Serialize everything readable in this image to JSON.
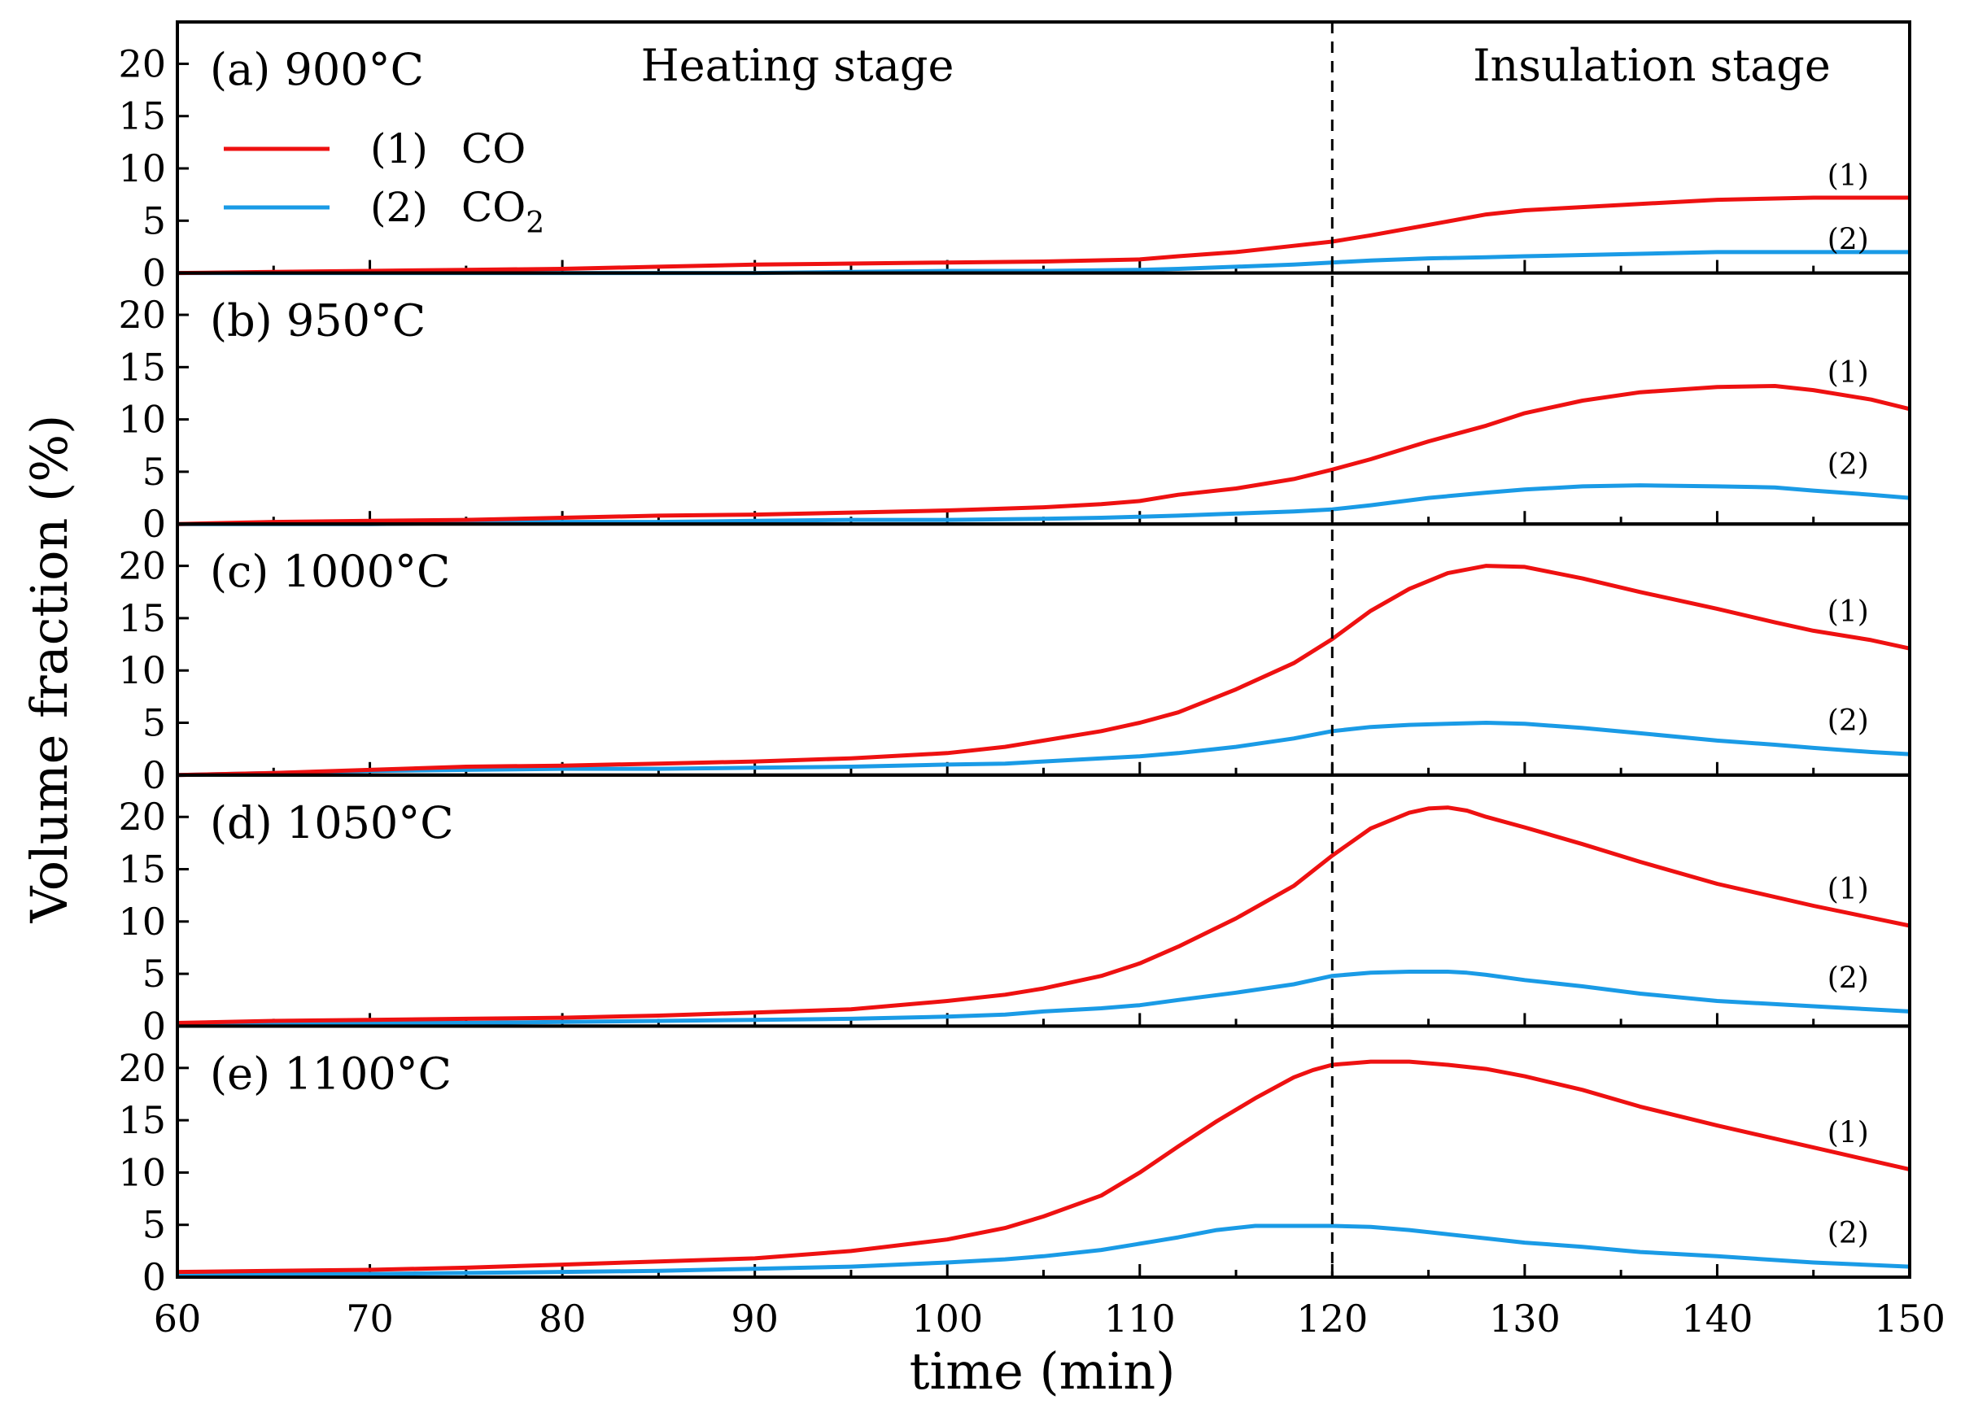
{
  "chart_data": {
    "type": "line",
    "layout": "stacked-panels",
    "xlabel": "time (min)",
    "ylabel": "Volume fraction (%)",
    "xlim": [
      60,
      150
    ],
    "xticks": [
      60,
      70,
      80,
      90,
      100,
      110,
      120,
      130,
      140,
      150
    ],
    "ylim": [
      0,
      24
    ],
    "yticks": [
      0,
      5,
      10,
      15,
      20
    ],
    "divider": {
      "x": 120,
      "style": "dashed"
    },
    "stage_labels": {
      "heating": "Heating stage",
      "insulation": "Insulation stage"
    },
    "legend": {
      "items": [
        {
          "id": "(1)",
          "name": "CO",
          "color": "#ee1111"
        },
        {
          "id": "(2)",
          "name": "CO2",
          "base": "CO",
          "subscript": "2",
          "color": "#1a9be6"
        }
      ]
    },
    "curve_tags": [
      "(1)",
      "(2)"
    ],
    "series_colors": {
      "co": "#ee1111",
      "co2": "#1a9be6"
    },
    "panels": [
      {
        "label": "(a)",
        "temperature": "900°C",
        "x": [
          60,
          65,
          70,
          75,
          80,
          85,
          90,
          95,
          100,
          105,
          110,
          112,
          115,
          118,
          120,
          122,
          125,
          128,
          130,
          135,
          140,
          145,
          150
        ],
        "co": [
          0,
          0.1,
          0.2,
          0.3,
          0.4,
          0.6,
          0.8,
          0.9,
          1.0,
          1.1,
          1.3,
          1.6,
          2.0,
          2.6,
          3.0,
          3.6,
          4.6,
          5.6,
          6.0,
          6.5,
          7.0,
          7.2,
          7.2
        ],
        "co2": [
          0,
          0,
          0,
          0,
          0,
          0,
          0,
          0.1,
          0.2,
          0.2,
          0.3,
          0.4,
          0.6,
          0.8,
          1.0,
          1.2,
          1.4,
          1.5,
          1.6,
          1.8,
          2.0,
          2.0,
          2.0
        ],
        "tag_values": {
          "co": 9.3,
          "co2": 3.2
        }
      },
      {
        "label": "(b)",
        "temperature": "950°C",
        "x": [
          60,
          65,
          70,
          75,
          80,
          85,
          90,
          95,
          100,
          105,
          108,
          110,
          112,
          115,
          118,
          120,
          122,
          125,
          128,
          130,
          133,
          136,
          140,
          143,
          145,
          148,
          150
        ],
        "co": [
          0,
          0.2,
          0.3,
          0.4,
          0.6,
          0.8,
          0.9,
          1.1,
          1.3,
          1.6,
          1.9,
          2.2,
          2.8,
          3.4,
          4.3,
          5.2,
          6.2,
          7.9,
          9.4,
          10.6,
          11.8,
          12.6,
          13.1,
          13.2,
          12.8,
          11.9,
          11.0
        ],
        "co2": [
          0,
          0,
          0,
          0.1,
          0.2,
          0.2,
          0.3,
          0.4,
          0.4,
          0.5,
          0.6,
          0.7,
          0.8,
          1.0,
          1.2,
          1.4,
          1.8,
          2.5,
          3.0,
          3.3,
          3.6,
          3.7,
          3.6,
          3.5,
          3.2,
          2.8,
          2.5
        ]
      },
      {
        "label": "(c)",
        "temperature": "1000°C",
        "x": [
          60,
          65,
          70,
          75,
          80,
          85,
          90,
          95,
          100,
          103,
          105,
          108,
          110,
          112,
          115,
          118,
          120,
          122,
          124,
          126,
          128,
          130,
          133,
          136,
          140,
          143,
          145,
          148,
          150
        ],
        "co": [
          0,
          0.2,
          0.5,
          0.8,
          0.9,
          1.1,
          1.3,
          1.6,
          2.1,
          2.7,
          3.3,
          4.2,
          5.0,
          6.0,
          8.2,
          10.7,
          13.0,
          15.7,
          17.8,
          19.3,
          20.0,
          19.9,
          18.8,
          17.5,
          15.9,
          14.6,
          13.8,
          12.9,
          12.1
        ],
        "co2": [
          0,
          0.2,
          0.4,
          0.5,
          0.6,
          0.6,
          0.7,
          0.8,
          1.0,
          1.1,
          1.3,
          1.6,
          1.8,
          2.1,
          2.7,
          3.5,
          4.2,
          4.6,
          4.8,
          4.9,
          5.0,
          4.9,
          4.5,
          4.0,
          3.3,
          2.9,
          2.6,
          2.2,
          2.0
        ]
      },
      {
        "label": "(d)",
        "temperature": "1050°C",
        "x": [
          60,
          65,
          70,
          75,
          80,
          85,
          90,
          95,
          100,
          103,
          105,
          108,
          110,
          112,
          115,
          118,
          120,
          122,
          124,
          125,
          126,
          127,
          128,
          130,
          133,
          136,
          140,
          145,
          150
        ],
        "co": [
          0.3,
          0.5,
          0.6,
          0.7,
          0.8,
          1.0,
          1.3,
          1.6,
          2.4,
          3.0,
          3.6,
          4.8,
          6.0,
          7.6,
          10.3,
          13.4,
          16.3,
          18.9,
          20.4,
          20.8,
          20.9,
          20.6,
          20.0,
          19.0,
          17.4,
          15.7,
          13.6,
          11.5,
          9.6
        ],
        "co2": [
          0.1,
          0.2,
          0.3,
          0.3,
          0.4,
          0.5,
          0.6,
          0.7,
          0.9,
          1.1,
          1.4,
          1.7,
          2.0,
          2.5,
          3.2,
          4.0,
          4.8,
          5.1,
          5.2,
          5.2,
          5.2,
          5.1,
          4.9,
          4.4,
          3.8,
          3.1,
          2.4,
          1.9,
          1.4
        ]
      },
      {
        "label": "(e)",
        "temperature": "1100°C",
        "x": [
          60,
          65,
          70,
          75,
          80,
          85,
          90,
          95,
          100,
          103,
          105,
          108,
          110,
          112,
          114,
          116,
          118,
          119,
          120,
          122,
          124,
          126,
          128,
          130,
          133,
          136,
          140,
          145,
          150
        ],
        "co": [
          0.5,
          0.6,
          0.7,
          0.9,
          1.2,
          1.5,
          1.8,
          2.5,
          3.6,
          4.7,
          5.8,
          7.8,
          10.0,
          12.5,
          14.9,
          17.1,
          19.1,
          19.8,
          20.3,
          20.6,
          20.6,
          20.3,
          19.9,
          19.2,
          17.9,
          16.3,
          14.5,
          12.4,
          10.3
        ],
        "co2": [
          0.2,
          0.3,
          0.3,
          0.4,
          0.5,
          0.6,
          0.8,
          1.0,
          1.4,
          1.7,
          2.0,
          2.6,
          3.2,
          3.8,
          4.5,
          4.9,
          4.9,
          4.9,
          4.9,
          4.8,
          4.5,
          4.1,
          3.7,
          3.3,
          2.9,
          2.4,
          2.0,
          1.4,
          1.0
        ]
      }
    ]
  }
}
